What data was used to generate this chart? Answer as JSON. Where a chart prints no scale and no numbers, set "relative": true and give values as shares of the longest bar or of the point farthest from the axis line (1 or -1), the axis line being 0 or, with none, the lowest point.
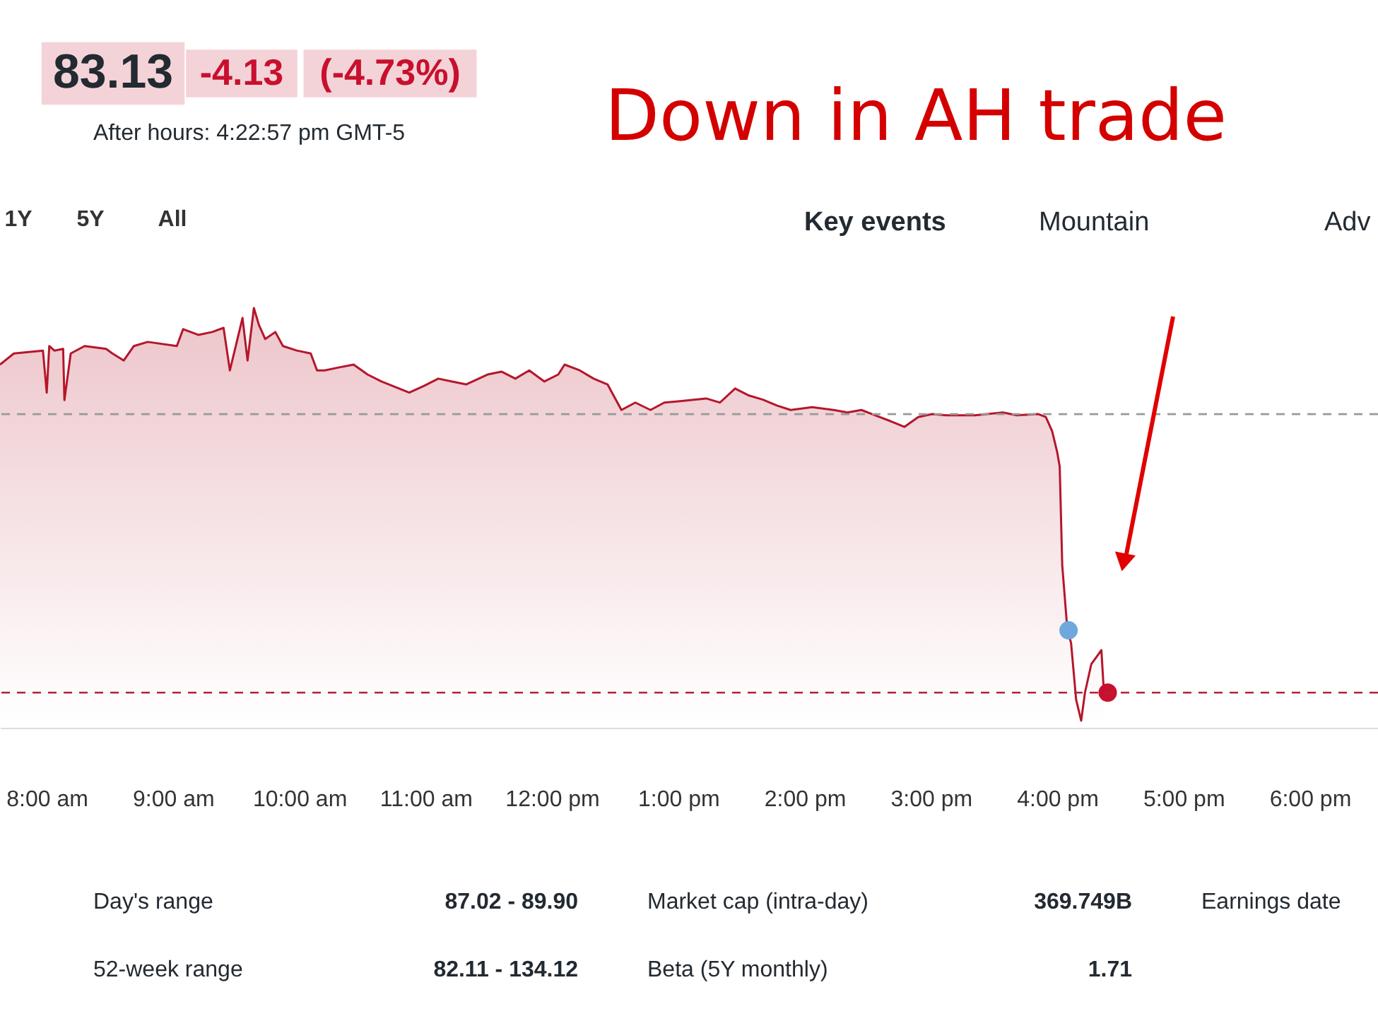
{
  "chart_data": {
    "type": "area",
    "relative": true,
    "xlim": [
      7.63,
      18.54
    ],
    "xticks": [
      {
        "value": 8,
        "label": "8:00 am"
      },
      {
        "value": 9,
        "label": "9:00 am"
      },
      {
        "value": 10,
        "label": "10:00 am"
      },
      {
        "value": 11,
        "label": "11:00 am"
      },
      {
        "value": 12,
        "label": "12:00 pm"
      },
      {
        "value": 13,
        "label": "1:00 pm"
      },
      {
        "value": 14,
        "label": "2:00 pm"
      },
      {
        "value": 15,
        "label": "3:00 pm"
      },
      {
        "value": 16,
        "label": "4:00 pm"
      },
      {
        "value": 17,
        "label": "5:00 pm"
      },
      {
        "value": 18,
        "label": "6:00 pm"
      }
    ],
    "series": [
      {
        "color": "#b5162b",
        "x": [
          7.63,
          7.74,
          7.97,
          8.0,
          8.02,
          8.06,
          8.13,
          8.14,
          8.19,
          8.3,
          8.47,
          8.52,
          8.61,
          8.69,
          8.8,
          9.03,
          9.08,
          9.2,
          9.31,
          9.4,
          9.45,
          9.51,
          9.55,
          9.59,
          9.64,
          9.68,
          9.73,
          9.81,
          9.87,
          9.98,
          10.09,
          10.14,
          10.2,
          10.31,
          10.43,
          10.54,
          10.65,
          10.87,
          10.99,
          11.1,
          11.21,
          11.32,
          11.49,
          11.6,
          11.71,
          11.82,
          11.94,
          12.05,
          12.1,
          12.22,
          12.33,
          12.44,
          12.55,
          12.66,
          12.78,
          12.89,
          13.0,
          13.22,
          13.33,
          13.45,
          13.56,
          13.67,
          13.78,
          13.89,
          14.06,
          14.23,
          14.34,
          14.45,
          14.56,
          14.68,
          14.79,
          14.9,
          15.01,
          15.12,
          15.35,
          15.57,
          15.68,
          15.85,
          15.91,
          15.96,
          16.0,
          16.02,
          16.04,
          16.08,
          16.11,
          16.15,
          16.19,
          16.22,
          16.27,
          16.31,
          16.35,
          16.37
        ],
        "values": [
          0.863,
          0.89,
          0.897,
          0.795,
          0.908,
          0.897,
          0.901,
          0.777,
          0.89,
          0.908,
          0.901,
          0.89,
          0.873,
          0.908,
          0.918,
          0.908,
          0.949,
          0.935,
          0.942,
          0.952,
          0.849,
          0.925,
          0.976,
          0.873,
          1.0,
          0.959,
          0.925,
          0.942,
          0.908,
          0.897,
          0.89,
          0.849,
          0.849,
          0.856,
          0.863,
          0.839,
          0.822,
          0.795,
          0.812,
          0.829,
          0.822,
          0.815,
          0.839,
          0.846,
          0.829,
          0.849,
          0.822,
          0.839,
          0.863,
          0.849,
          0.829,
          0.815,
          0.753,
          0.771,
          0.753,
          0.771,
          0.774,
          0.781,
          0.771,
          0.805,
          0.788,
          0.778,
          0.764,
          0.753,
          0.76,
          0.753,
          0.747,
          0.753,
          0.74,
          0.726,
          0.712,
          0.736,
          0.743,
          0.74,
          0.74,
          0.747,
          0.74,
          0.743,
          0.736,
          0.702,
          0.651,
          0.616,
          0.377,
          0.223,
          0.188,
          0.051,
          0.0,
          0.068,
          0.137,
          0.154,
          0.171,
          0.068
        ]
      },
      {
        "type": "scatter",
        "x": [
          16.09,
          16.4
        ],
        "values": [
          0.219,
          0.068
        ],
        "colors": [
          "#6fa8dc",
          "#c8102e"
        ]
      }
    ],
    "ref_lines": [
      {
        "axis": "y",
        "value": 0.743,
        "color": "#999999",
        "line_style": "dashed"
      },
      {
        "axis": "y",
        "value": 0.068,
        "color": "#b0243a",
        "line_style": "dashed"
      }
    ],
    "annotations": [
      "Down in AH trade",
      "83.13",
      "-4.13",
      "(-4.73%)",
      "After hours: 4:22:57 pm GMT-5",
      "1Y",
      "5Y",
      "All",
      "Key events",
      "Mountain",
      "Adv",
      "Day's range",
      "87.02 - 89.90",
      "Market cap (intra-day)",
      "369.749B",
      "Earnings date",
      "52-week range",
      "82.11 - 134.12",
      "Beta (5Y monthly)",
      "1.71"
    ]
  }
}
